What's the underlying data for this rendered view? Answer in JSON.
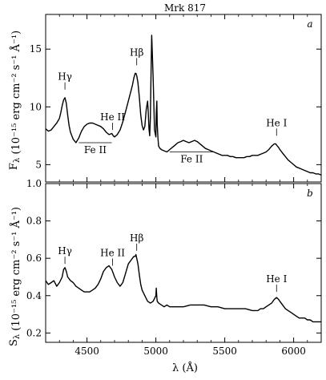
{
  "figure": {
    "title": "Mrk 817",
    "xlabel": "λ (Å)"
  },
  "chart_data": [
    {
      "type": "line",
      "panel_label": "a",
      "ylabel": "Fλ (10⁻¹⁵ erg cm⁻² s⁻¹ Å⁻¹)",
      "xlim": [
        4200,
        6200
      ],
      "ylim": [
        3.5,
        18
      ],
      "xticks": [
        4500,
        5000,
        5500,
        6000
      ],
      "xtick_labels": [],
      "yticks": [
        5,
        10,
        15
      ],
      "ytick_labels": [
        "5",
        "10",
        "15"
      ],
      "line_annotations": [
        {
          "label": "Hγ",
          "x": 4340,
          "y": 11.5
        },
        {
          "label": "He II",
          "x": 4686,
          "y": 8.0
        },
        {
          "label": "Hβ",
          "x": 4861,
          "y": 13.6
        },
        {
          "label": "He I",
          "x": 5876,
          "y": 7.5
        }
      ],
      "band_annotations": [
        {
          "label": "Fe II",
          "x_range": [
            4440,
            4680
          ],
          "y": 6.9
        },
        {
          "label": "Fe II",
          "x_range": [
            5100,
            5420
          ],
          "y": 6.1
        }
      ],
      "series": [
        {
          "x": [
            4200,
            4220,
            4240,
            4260,
            4280,
            4300,
            4310,
            4320,
            4330,
            4340,
            4350,
            4360,
            4370,
            4380,
            4400,
            4420,
            4440,
            4460,
            4480,
            4500,
            4520,
            4540,
            4560,
            4580,
            4600,
            4620,
            4640,
            4660,
            4680,
            4690,
            4700,
            4720,
            4740,
            4760,
            4780,
            4800,
            4820,
            4830,
            4840,
            4850,
            4855,
            4861,
            4870,
            4880,
            4890,
            4900,
            4910,
            4920,
            4930,
            4940,
            4945,
            4950,
            4955,
            4960,
            4965,
            4970,
            4980,
            4990,
            5000,
            5003,
            5007,
            5010,
            5015,
            5020,
            5030,
            5040,
            5060,
            5080,
            5100,
            5120,
            5140,
            5160,
            5180,
            5200,
            5220,
            5240,
            5260,
            5280,
            5300,
            5320,
            5340,
            5360,
            5380,
            5400,
            5420,
            5440,
            5460,
            5480,
            5500,
            5520,
            5540,
            5560,
            5580,
            5600,
            5620,
            5640,
            5660,
            5680,
            5700,
            5720,
            5740,
            5760,
            5780,
            5800,
            5820,
            5840,
            5860,
            5870,
            5876,
            5890,
            5900,
            5920,
            5940,
            5960,
            5980,
            6000,
            6020,
            6040,
            6060,
            6080,
            6100,
            6120,
            6140,
            6160,
            6180,
            6200
          ],
          "y": [
            8.1,
            7.9,
            8.0,
            8.3,
            8.6,
            9.0,
            9.5,
            10.1,
            10.6,
            10.8,
            10.3,
            9.3,
            8.4,
            7.8,
            7.2,
            6.9,
            7.3,
            7.9,
            8.3,
            8.5,
            8.6,
            8.6,
            8.5,
            8.4,
            8.3,
            8.1,
            7.8,
            7.6,
            7.7,
            7.5,
            7.4,
            7.6,
            8.0,
            8.7,
            9.6,
            10.5,
            11.4,
            11.9,
            12.5,
            12.9,
            12.9,
            12.7,
            12.1,
            10.8,
            9.3,
            8.4,
            8.0,
            8.3,
            9.8,
            10.5,
            9.5,
            8.1,
            7.5,
            9.0,
            13.0,
            16.2,
            12.5,
            8.0,
            7.4,
            9.5,
            10.5,
            8.5,
            7.3,
            6.6,
            6.4,
            6.3,
            6.2,
            6.1,
            6.3,
            6.5,
            6.7,
            6.9,
            7.0,
            7.1,
            7.0,
            6.9,
            7.0,
            7.1,
            7.0,
            6.8,
            6.6,
            6.4,
            6.3,
            6.2,
            6.1,
            6.0,
            5.9,
            5.8,
            5.8,
            5.8,
            5.7,
            5.7,
            5.6,
            5.6,
            5.6,
            5.6,
            5.7,
            5.7,
            5.8,
            5.8,
            5.8,
            5.9,
            6.0,
            6.1,
            6.3,
            6.6,
            6.8,
            6.8,
            6.7,
            6.5,
            6.3,
            6.0,
            5.7,
            5.4,
            5.2,
            5.0,
            4.8,
            4.7,
            4.6,
            4.5,
            4.4,
            4.3,
            4.3,
            4.2,
            4.2,
            4.1
          ]
        }
      ]
    },
    {
      "type": "line",
      "panel_label": "b",
      "ylabel": "Sλ (10⁻¹⁵ erg cm⁻² s⁻¹ Å⁻¹)",
      "xlim": [
        4200,
        6200
      ],
      "ylim": [
        0.15,
        1.0
      ],
      "xticks": [
        4500,
        5000,
        5500,
        6000
      ],
      "xtick_labels": [
        "4500",
        "5000",
        "5500",
        "6000"
      ],
      "yticks": [
        0.2,
        0.4,
        0.6,
        0.8,
        1.0
      ],
      "ytick_labels": [
        "0.2",
        "0.4",
        "0.6",
        "0.8",
        "1.0"
      ],
      "line_annotations": [
        {
          "label": "Hγ",
          "x": 4340,
          "y": 0.57
        },
        {
          "label": "He II",
          "x": 4686,
          "y": 0.56
        },
        {
          "label": "Hβ",
          "x": 4861,
          "y": 0.64
        },
        {
          "label": "He I",
          "x": 5876,
          "y": 0.42
        }
      ],
      "series": [
        {
          "x": [
            4200,
            4220,
            4240,
            4260,
            4280,
            4300,
            4320,
            4330,
            4340,
            4350,
            4360,
            4380,
            4400,
            4420,
            4440,
            4460,
            4480,
            4500,
            4520,
            4540,
            4560,
            4580,
            4600,
            4620,
            4640,
            4660,
            4680,
            4690,
            4700,
            4720,
            4740,
            4760,
            4780,
            4800,
            4820,
            4840,
            4850,
            4855,
            4861,
            4870,
            4880,
            4890,
            4900,
            4920,
            4940,
            4960,
            4980,
            5000,
            5003,
            5007,
            5010,
            5020,
            5040,
            5060,
            5080,
            5100,
            5150,
            5200,
            5250,
            5300,
            5350,
            5400,
            5450,
            5500,
            5550,
            5600,
            5650,
            5700,
            5720,
            5740,
            5760,
            5780,
            5800,
            5820,
            5840,
            5860,
            5876,
            5890,
            5900,
            5920,
            5940,
            5960,
            5980,
            6000,
            6020,
            6040,
            6060,
            6080,
            6100,
            6120,
            6140,
            6160,
            6180,
            6200
          ],
          "y": [
            0.48,
            0.46,
            0.47,
            0.48,
            0.45,
            0.47,
            0.5,
            0.54,
            0.55,
            0.53,
            0.5,
            0.48,
            0.47,
            0.45,
            0.44,
            0.43,
            0.42,
            0.42,
            0.42,
            0.43,
            0.44,
            0.46,
            0.49,
            0.53,
            0.55,
            0.56,
            0.54,
            0.52,
            0.5,
            0.47,
            0.45,
            0.47,
            0.52,
            0.57,
            0.59,
            0.61,
            0.61,
            0.62,
            0.6,
            0.57,
            0.51,
            0.46,
            0.43,
            0.4,
            0.37,
            0.36,
            0.37,
            0.4,
            0.44,
            0.39,
            0.37,
            0.36,
            0.35,
            0.34,
            0.35,
            0.34,
            0.34,
            0.34,
            0.35,
            0.35,
            0.35,
            0.34,
            0.34,
            0.33,
            0.33,
            0.33,
            0.33,
            0.32,
            0.32,
            0.32,
            0.33,
            0.33,
            0.34,
            0.35,
            0.36,
            0.38,
            0.39,
            0.38,
            0.37,
            0.35,
            0.33,
            0.32,
            0.31,
            0.3,
            0.29,
            0.28,
            0.28,
            0.28,
            0.27,
            0.27,
            0.26,
            0.26,
            0.26,
            0.26
          ]
        }
      ]
    }
  ]
}
